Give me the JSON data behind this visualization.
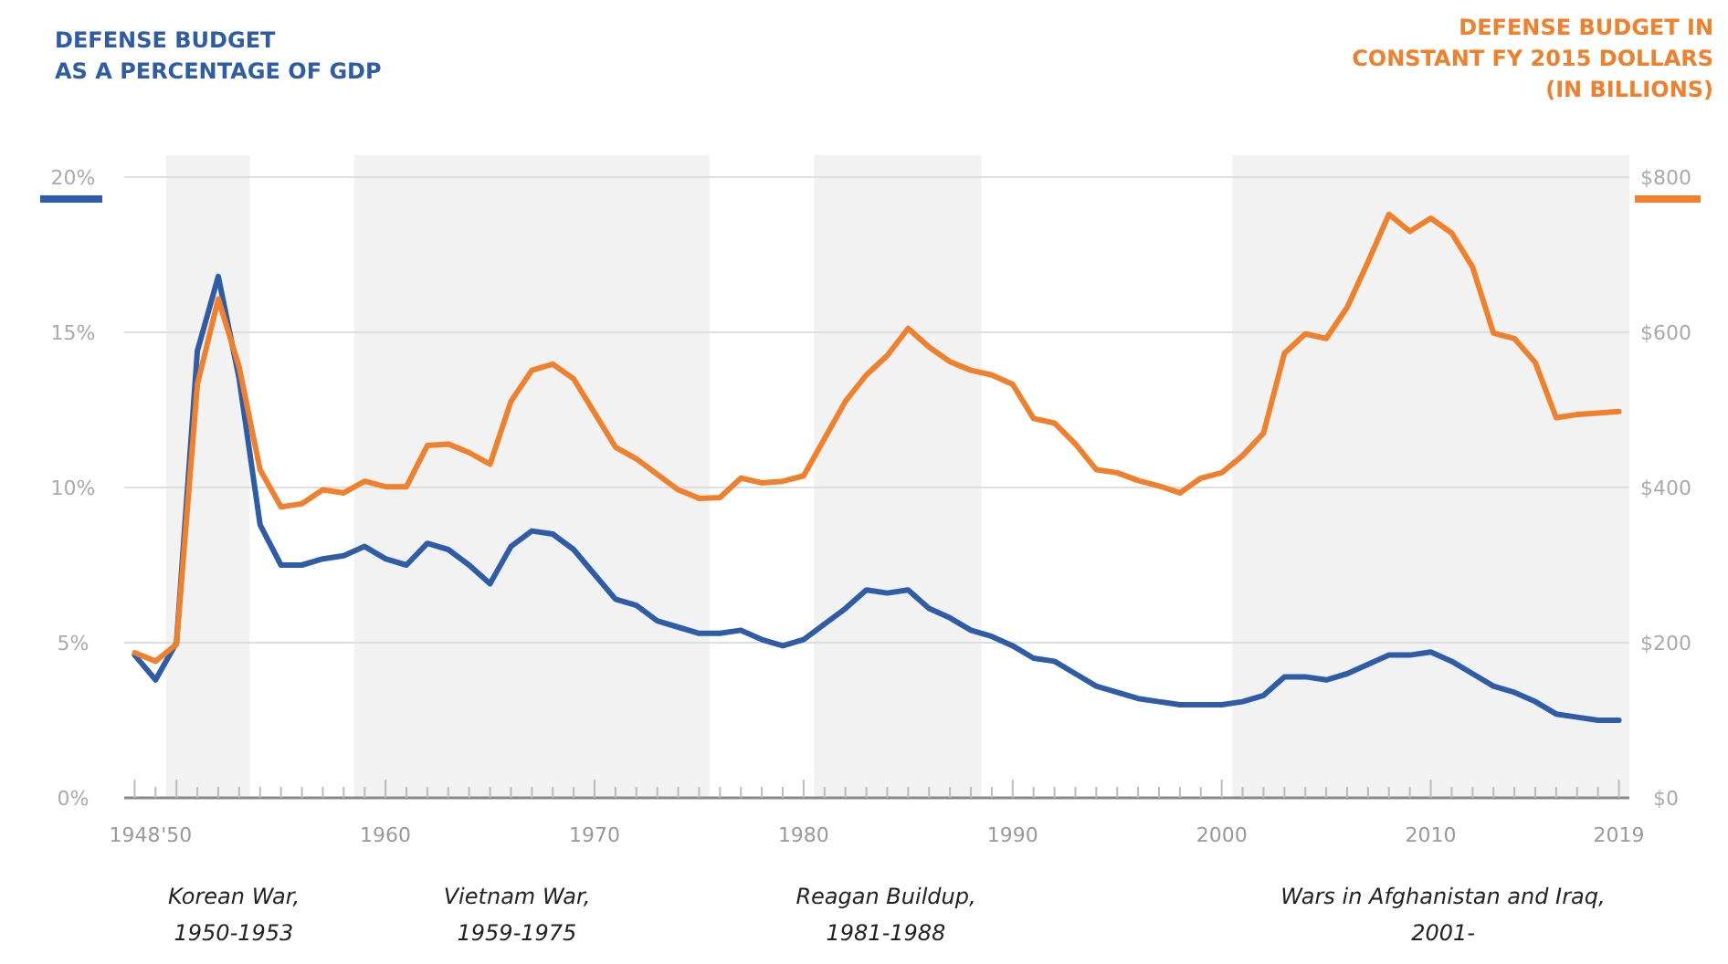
{
  "chart_data": {
    "type": "line",
    "ylabel": "DEFENSE BUDGET\nAS A PERCENTAGE OF GDP",
    "y2label": "DEFENSE BUDGET IN\nCONSTANT FY 2015 DOLLARS\n(IN BILLIONS)",
    "x": [
      1948,
      1949,
      1950,
      1951,
      1952,
      1953,
      1954,
      1955,
      1956,
      1957,
      1958,
      1959,
      1960,
      1961,
      1962,
      1963,
      1964,
      1965,
      1966,
      1967,
      1968,
      1969,
      1970,
      1971,
      1972,
      1973,
      1974,
      1975,
      1976,
      1977,
      1978,
      1979,
      1980,
      1981,
      1982,
      1983,
      1984,
      1985,
      1986,
      1987,
      1988,
      1989,
      1990,
      1991,
      1992,
      1993,
      1994,
      1995,
      1996,
      1997,
      1998,
      1999,
      2000,
      2001,
      2002,
      2003,
      2004,
      2005,
      2006,
      2007,
      2008,
      2009,
      2010,
      2011,
      2012,
      2013,
      2014,
      2015,
      2016,
      2017,
      2018,
      2019
    ],
    "series": [
      {
        "color": "#2e5ca6",
        "axis": "y",
        "values": [
          4.6,
          3.8,
          5.0,
          14.4,
          16.8,
          13.5,
          8.8,
          7.5,
          7.5,
          7.7,
          7.8,
          8.1,
          7.7,
          7.5,
          8.2,
          8.0,
          7.5,
          6.9,
          8.1,
          8.6,
          8.5,
          8.0,
          7.2,
          6.4,
          6.2,
          5.7,
          5.5,
          5.3,
          5.3,
          5.4,
          5.1,
          4.9,
          5.1,
          5.6,
          6.1,
          6.7,
          6.6,
          6.7,
          6.1,
          5.8,
          5.4,
          5.2,
          4.9,
          4.5,
          4.4,
          4.0,
          3.6,
          3.4,
          3.2,
          3.1,
          3.0,
          3.0,
          3.0,
          3.1,
          3.3,
          3.9,
          3.9,
          3.8,
          4.0,
          4.3,
          4.6,
          4.6,
          4.7,
          4.4,
          4.0,
          3.6,
          3.4,
          3.1,
          2.7,
          2.6,
          2.5,
          2.5
        ]
      },
      {
        "color": "#f0802c",
        "axis": "y2",
        "values": [
          187,
          176,
          198,
          533,
          643,
          555,
          423,
          375,
          379,
          397,
          393,
          408,
          401,
          401,
          454,
          456,
          445,
          430,
          511,
          551,
          559,
          540,
          496,
          452,
          437,
          417,
          397,
          386,
          387,
          412,
          406,
          408,
          415,
          463,
          511,
          545,
          570,
          605,
          581,
          562,
          551,
          545,
          533,
          489,
          483,
          456,
          423,
          419,
          409,
          402,
          393,
          412,
          419,
          441,
          470,
          573,
          598,
          592,
          632,
          691,
          752,
          730,
          747,
          728,
          684,
          599,
          592,
          561,
          490,
          494,
          496,
          498
        ]
      }
    ],
    "xlim": [
      1947.5,
      2019.5
    ],
    "xticks": [
      1948,
      {
        "value": 1949,
        "label": null
      },
      {
        "value": 1950,
        "label": "'50"
      },
      {
        "value": 1951,
        "label": null
      },
      {
        "value": 1952,
        "label": null
      },
      {
        "value": 1953,
        "label": null
      },
      {
        "value": 1954,
        "label": null
      },
      {
        "value": 1955,
        "label": null
      },
      {
        "value": 1956,
        "label": null
      },
      {
        "value": 1957,
        "label": null
      },
      {
        "value": 1958,
        "label": null
      },
      {
        "value": 1959,
        "label": null
      },
      1960,
      {
        "value": 1961,
        "label": null
      },
      {
        "value": 1962,
        "label": null
      },
      {
        "value": 1963,
        "label": null
      },
      {
        "value": 1964,
        "label": null
      },
      {
        "value": 1965,
        "label": null
      },
      {
        "value": 1966,
        "label": null
      },
      {
        "value": 1967,
        "label": null
      },
      {
        "value": 1968,
        "label": null
      },
      {
        "value": 1969,
        "label": null
      },
      1970,
      {
        "value": 1971,
        "label": null
      },
      {
        "value": 1972,
        "label": null
      },
      {
        "value": 1973,
        "label": null
      },
      {
        "value": 1974,
        "label": null
      },
      {
        "value": 1975,
        "label": null
      },
      {
        "value": 1976,
        "label": null
      },
      {
        "value": 1977,
        "label": null
      },
      {
        "value": 1978,
        "label": null
      },
      {
        "value": 1979,
        "label": null
      },
      1980,
      {
        "value": 1981,
        "label": null
      },
      {
        "value": 1982,
        "label": null
      },
      {
        "value": 1983,
        "label": null
      },
      {
        "value": 1984,
        "label": null
      },
      {
        "value": 1985,
        "label": null
      },
      {
        "value": 1986,
        "label": null
      },
      {
        "value": 1987,
        "label": null
      },
      {
        "value": 1988,
        "label": null
      },
      {
        "value": 1989,
        "label": null
      },
      1990,
      {
        "value": 1991,
        "label": null
      },
      {
        "value": 1992,
        "label": null
      },
      {
        "value": 1993,
        "label": null
      },
      {
        "value": 1994,
        "label": null
      },
      {
        "value": 1995,
        "label": null
      },
      {
        "value": 1996,
        "label": null
      },
      {
        "value": 1997,
        "label": null
      },
      {
        "value": 1998,
        "label": null
      },
      {
        "value": 1999,
        "label": null
      },
      2000,
      {
        "value": 2001,
        "label": null
      },
      {
        "value": 2002,
        "label": null
      },
      {
        "value": 2003,
        "label": null
      },
      {
        "value": 2004,
        "label": null
      },
      {
        "value": 2005,
        "label": null
      },
      {
        "value": 2006,
        "label": null
      },
      {
        "value": 2007,
        "label": null
      },
      {
        "value": 2008,
        "label": null
      },
      {
        "value": 2009,
        "label": null
      },
      2010,
      {
        "value": 2011,
        "label": null
      },
      {
        "value": 2012,
        "label": null
      },
      {
        "value": 2013,
        "label": null
      },
      {
        "value": 2014,
        "label": null
      },
      {
        "value": 2015,
        "label": null
      },
      {
        "value": 2016,
        "label": null
      },
      {
        "value": 2017,
        "label": null
      },
      {
        "value": 2018,
        "label": null
      },
      2019
    ],
    "ylim": [
      0,
      20
    ],
    "yticks": [
      {
        "value": 0,
        "label": "0%"
      },
      {
        "value": 5,
        "label": "5%"
      },
      {
        "value": 10,
        "label": "10%"
      },
      {
        "value": 15,
        "label": "15%"
      },
      {
        "value": 20,
        "label": "20%"
      }
    ],
    "y2lim": [
      0,
      800
    ],
    "y2ticks": [
      {
        "value": 0,
        "label": "$0"
      },
      {
        "value": 200,
        "label": "$200"
      },
      {
        "value": 400,
        "label": "$400"
      },
      {
        "value": 600,
        "label": "$600"
      },
      {
        "value": 800,
        "label": "$800"
      }
    ],
    "grid": "y",
    "bands": [
      {
        "axis": "x",
        "from": 1949.5,
        "to": 1953.5,
        "color": "#f2f2f2"
      },
      {
        "axis": "x",
        "from": 1958.5,
        "to": 1975.5,
        "color": "#f2f2f2"
      },
      {
        "axis": "x",
        "from": 1980.5,
        "to": 1988.5,
        "color": "#f2f2f2"
      },
      {
        "axis": "x",
        "from": 2000.5,
        "to": 2019.5,
        "color": "#f2f2f2"
      }
    ],
    "annotations": [
      "Korean War,\n1950-1953",
      "Vietnam War,\n1959-1975",
      "Reagan Buildup,\n1981-1988",
      "Wars in Afghanistan and Iraq,\n2001-"
    ],
    "marker": "none",
    "line_style": "solid"
  }
}
